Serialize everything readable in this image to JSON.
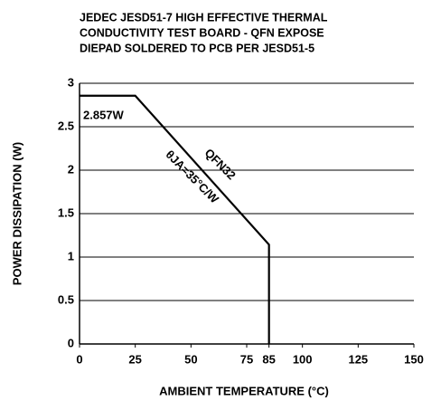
{
  "chart_data": {
    "type": "line",
    "title": [
      "JEDEC JESD51-7 HIGH EFFECTIVE THERMAL",
      "CONDUCTIVITY TEST BOARD - QFN EXPOSE",
      "DIEPAD SOLDERED TO PCB PER JESD51-5"
    ],
    "x_label": "AMBIENT TEMPERATURE (°C)",
    "y_label": "POWER DISSIPATION (W)",
    "x": [
      0,
      25,
      85,
      85
    ],
    "series": [
      {
        "name": "QFN32",
        "color": "#000000",
        "values": [
          2.857,
          2.857,
          1.143,
          0
        ]
      }
    ],
    "annotations": [
      "2.857W",
      "θJA=35°C/W"
    ],
    "xlim": [
      0,
      150
    ],
    "xticks": [
      0,
      25,
      50,
      75,
      85,
      100,
      125,
      150
    ],
    "ylim": [
      0,
      3
    ],
    "yticks": [
      0,
      0.5,
      1,
      1.5,
      2,
      2.5,
      3
    ],
    "grid": true
  }
}
